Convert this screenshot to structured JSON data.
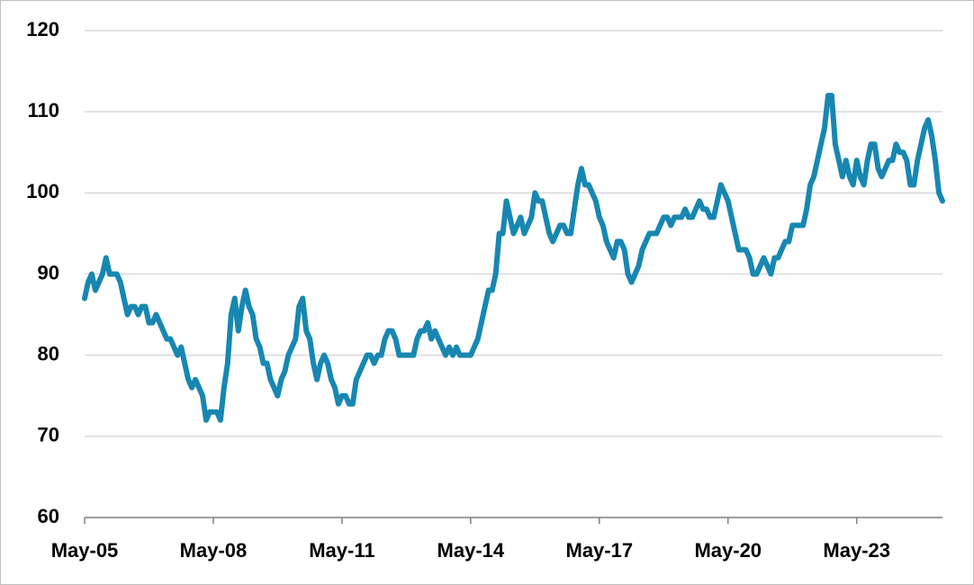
{
  "chart_data": {
    "type": "line",
    "x": [
      "May-05",
      "Jun-05",
      "Jul-05",
      "Aug-05",
      "Sep-05",
      "Oct-05",
      "Nov-05",
      "Dec-05",
      "Jan-06",
      "Feb-06",
      "Mar-06",
      "Apr-06",
      "May-06",
      "Jun-06",
      "Jul-06",
      "Aug-06",
      "Sep-06",
      "Oct-06",
      "Nov-06",
      "Dec-06",
      "Jan-07",
      "Feb-07",
      "Mar-07",
      "Apr-07",
      "May-07",
      "Jun-07",
      "Jul-07",
      "Aug-07",
      "Sep-07",
      "Oct-07",
      "Nov-07",
      "Dec-07",
      "Jan-08",
      "Feb-08",
      "Mar-08",
      "Apr-08",
      "May-08",
      "Jun-08",
      "Jul-08",
      "Aug-08",
      "Sep-08",
      "Oct-08",
      "Nov-08",
      "Dec-08",
      "Jan-09",
      "Feb-09",
      "Mar-09",
      "Apr-09",
      "May-09",
      "Jun-09",
      "Jul-09",
      "Aug-09",
      "Sep-09",
      "Oct-09",
      "Nov-09",
      "Dec-09",
      "Jan-10",
      "Feb-10",
      "Mar-10",
      "Apr-10",
      "May-10",
      "Jun-10",
      "Jul-10",
      "Aug-10",
      "Sep-10",
      "Oct-10",
      "Nov-10",
      "Dec-10",
      "Jan-11",
      "Feb-11",
      "Mar-11",
      "Apr-11",
      "May-11",
      "Jun-11",
      "Jul-11",
      "Aug-11",
      "Sep-11",
      "Oct-11",
      "Nov-11",
      "Dec-11",
      "Jan-12",
      "Feb-12",
      "Mar-12",
      "Apr-12",
      "May-12",
      "Jun-12",
      "Jul-12",
      "Aug-12",
      "Sep-12",
      "Oct-12",
      "Nov-12",
      "Dec-12",
      "Jan-13",
      "Feb-13",
      "Mar-13",
      "Apr-13",
      "May-13",
      "Jun-13",
      "Jul-13",
      "Aug-13",
      "Sep-13",
      "Oct-13",
      "Nov-13",
      "Dec-13",
      "Jan-14",
      "Feb-14",
      "Mar-14",
      "Apr-14",
      "May-14",
      "Jun-14",
      "Jul-14",
      "Aug-14",
      "Sep-14",
      "Oct-14",
      "Nov-14",
      "Dec-14",
      "Jan-15",
      "Feb-15",
      "Mar-15",
      "Apr-15",
      "May-15",
      "Jun-15",
      "Jul-15",
      "Aug-15",
      "Sep-15",
      "Oct-15",
      "Nov-15",
      "Dec-15",
      "Jan-16",
      "Feb-16",
      "Mar-16",
      "Apr-16",
      "May-16",
      "Jun-16",
      "Jul-16",
      "Aug-16",
      "Sep-16",
      "Oct-16",
      "Nov-16",
      "Dec-16",
      "Jan-17",
      "Feb-17",
      "Mar-17",
      "Apr-17",
      "May-17",
      "Jun-17",
      "Jul-17",
      "Aug-17",
      "Sep-17",
      "Oct-17",
      "Nov-17",
      "Dec-17",
      "Jan-18",
      "Feb-18",
      "Mar-18",
      "Apr-18",
      "May-18",
      "Jun-18",
      "Jul-18",
      "Aug-18",
      "Sep-18",
      "Oct-18",
      "Nov-18",
      "Dec-18",
      "Jan-19",
      "Feb-19",
      "Mar-19",
      "Apr-19",
      "May-19",
      "Jun-19",
      "Jul-19",
      "Aug-19",
      "Sep-19",
      "Oct-19",
      "Nov-19",
      "Dec-19",
      "Jan-20",
      "Feb-20",
      "Mar-20",
      "Apr-20",
      "May-20",
      "Jun-20",
      "Jul-20",
      "Aug-20",
      "Sep-20",
      "Oct-20",
      "Nov-20",
      "Dec-20",
      "Jan-21",
      "Feb-21",
      "Mar-21",
      "Apr-21",
      "May-21",
      "Jun-21",
      "Jul-21",
      "Aug-21",
      "Sep-21",
      "Oct-21",
      "Nov-21",
      "Dec-21",
      "Jan-22",
      "Feb-22",
      "Mar-22",
      "Apr-22",
      "May-22",
      "Jun-22",
      "Jul-22",
      "Aug-22",
      "Sep-22",
      "Oct-22",
      "Nov-22",
      "Dec-22",
      "Jan-23",
      "Feb-23",
      "Mar-23",
      "Apr-23",
      "May-23",
      "Jun-23",
      "Jul-23",
      "Aug-23",
      "Sep-23",
      "Oct-23",
      "Nov-23",
      "Dec-23",
      "Jan-24",
      "Feb-24",
      "Mar-24",
      "Apr-24",
      "May-24",
      "Jun-24",
      "Jul-24",
      "Aug-24",
      "Sep-24",
      "Oct-24",
      "Nov-24",
      "Dec-24",
      "Jan-25",
      "Feb-25",
      "Mar-25",
      "Apr-25",
      "May-25"
    ],
    "series": [
      {
        "color": "#1787b2",
        "values": [
          87,
          89,
          90,
          88,
          89,
          90,
          92,
          90,
          90,
          90,
          89,
          87,
          85,
          86,
          86,
          85,
          86,
          86,
          84,
          84,
          85,
          84,
          83,
          82,
          82,
          81,
          80,
          81,
          79,
          77,
          76,
          77,
          76,
          75,
          72,
          73,
          73,
          73,
          72,
          76,
          79,
          85,
          87,
          83,
          86,
          88,
          86,
          85,
          82,
          81,
          79,
          79,
          77,
          76,
          75,
          77,
          78,
          80,
          81,
          82,
          86,
          87,
          83,
          82,
          79,
          77,
          79,
          80,
          79,
          77,
          76,
          74,
          75,
          75,
          74,
          74,
          77,
          78,
          79,
          80,
          80,
          79,
          80,
          80,
          82,
          83,
          83,
          82,
          80,
          80,
          80,
          80,
          80,
          82,
          83,
          83,
          84,
          82,
          83,
          82,
          81,
          80,
          81,
          80,
          81,
          80,
          80,
          80,
          80,
          81,
          82,
          84,
          86,
          88,
          88,
          90,
          95,
          95,
          99,
          97,
          95,
          96,
          97,
          95,
          96,
          97,
          100,
          99,
          99,
          97,
          95,
          94,
          95,
          96,
          96,
          95,
          95,
          98,
          101,
          103,
          101,
          101,
          100,
          99,
          97,
          96,
          94,
          93,
          92,
          94,
          94,
          93,
          90,
          89,
          90,
          91,
          93,
          94,
          95,
          95,
          95,
          96,
          97,
          97,
          96,
          97,
          97,
          97,
          98,
          97,
          97,
          98,
          99,
          98,
          98,
          97,
          97,
          99,
          101,
          100,
          99,
          97,
          95,
          93,
          93,
          93,
          92,
          90,
          90,
          91,
          92,
          91,
          90,
          92,
          92,
          93,
          94,
          94,
          96,
          96,
          96,
          96,
          98,
          101,
          102,
          104,
          106,
          108,
          112,
          112,
          106,
          104,
          102,
          104,
          102,
          101,
          104,
          102,
          101,
          104,
          106,
          106,
          103,
          102,
          103,
          104,
          104,
          106,
          105,
          105,
          104,
          101,
          101,
          104,
          106,
          108,
          109,
          107,
          104,
          100,
          99
        ]
      }
    ],
    "ylim": [
      60,
      120
    ],
    "yticks": [
      60,
      70,
      80,
      90,
      100,
      110,
      120
    ],
    "xticks": [
      "May-05",
      "May-08",
      "May-11",
      "May-14",
      "May-17",
      "May-20",
      "May-23"
    ],
    "grid": true
  }
}
